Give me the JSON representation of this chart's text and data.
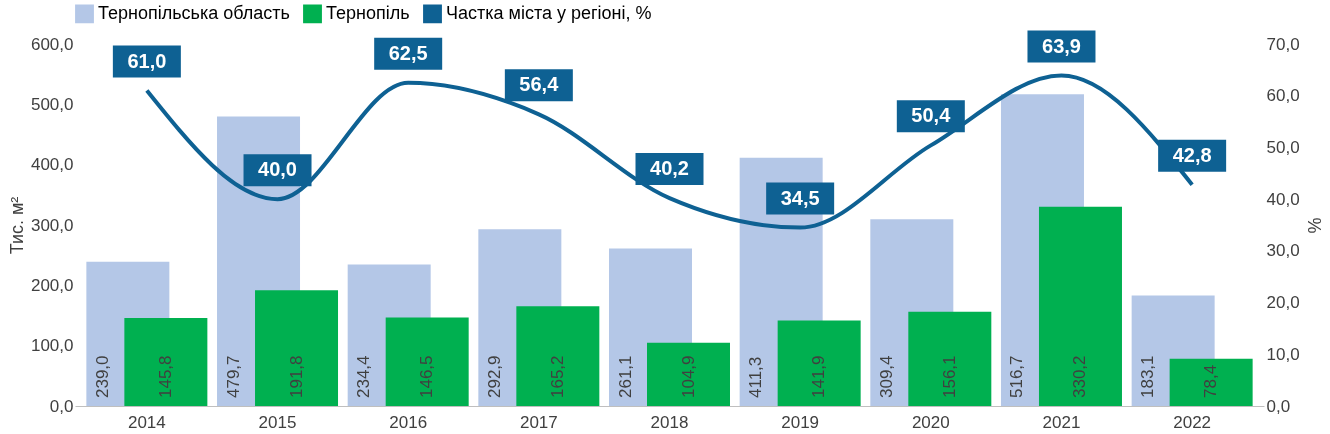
{
  "chart_data": {
    "type": "bar",
    "categories": [
      "2014",
      "2015",
      "2016",
      "2017",
      "2018",
      "2019",
      "2020",
      "2021",
      "2022"
    ],
    "ylabel": "Тис. м²",
    "y2label": "%",
    "ylim": [
      0,
      600
    ],
    "yticks": [
      {
        "value": 0,
        "label": "0,0"
      },
      {
        "value": 100,
        "label": "100,0"
      },
      {
        "value": 200,
        "label": "200,0"
      },
      {
        "value": 300,
        "label": "300,0"
      },
      {
        "value": 400,
        "label": "400,0"
      },
      {
        "value": 500,
        "label": "500,0"
      },
      {
        "value": 600,
        "label": "600,0"
      }
    ],
    "y2lim": [
      0,
      70
    ],
    "y2ticks": [
      {
        "value": 0,
        "label": "0,0"
      },
      {
        "value": 10,
        "label": "10,0"
      },
      {
        "value": 20,
        "label": "20,0"
      },
      {
        "value": 30,
        "label": "30,0"
      },
      {
        "value": 40,
        "label": "40,0"
      },
      {
        "value": 50,
        "label": "50,0"
      },
      {
        "value": 60,
        "label": "60,0"
      },
      {
        "value": 70,
        "label": "70,0"
      }
    ],
    "grid": false,
    "legend": "top",
    "series": [
      {
        "name": "Тернопільська область",
        "color": "#b4c7e7",
        "values": [
          239.0,
          479.7,
          234.4,
          292.9,
          261.1,
          411.3,
          309.4,
          516.7,
          183.1
        ],
        "value_labels": [
          "239,0",
          "479,7",
          "234,4",
          "292,9",
          "261,1",
          "411,3",
          "309,4",
          "516,7",
          "183,1"
        ]
      },
      {
        "name": "Тернопіль",
        "color": "#00b050",
        "values": [
          145.8,
          191.8,
          146.5,
          165.2,
          104.9,
          141.9,
          156.1,
          330.2,
          78.4
        ],
        "value_labels": [
          "145,8",
          "191,8",
          "146,5",
          "165,2",
          "104,9",
          "141,9",
          "156,1",
          "330,2",
          "78,4"
        ]
      },
      {
        "name": "Частка міста у регіоні, %",
        "type": "line",
        "axis": "y2",
        "color": "#0e6193",
        "values": [
          61.0,
          40.0,
          62.5,
          56.4,
          40.2,
          34.5,
          50.4,
          63.9,
          42.8
        ],
        "value_labels": [
          "61,0",
          "40,0",
          "62,5",
          "56,4",
          "40,2",
          "34,5",
          "50,4",
          "63,9",
          "42,8"
        ]
      }
    ]
  }
}
